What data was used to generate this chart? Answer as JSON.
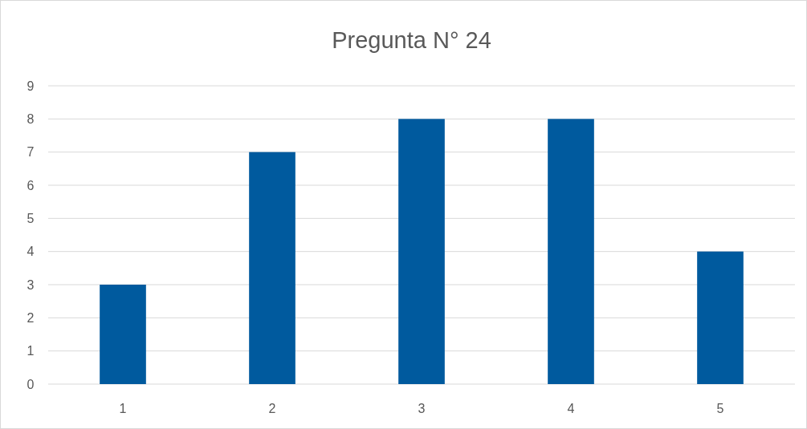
{
  "chart_data": {
    "type": "bar",
    "title": "Pregunta N° 24",
    "categories": [
      "1",
      "2",
      "3",
      "4",
      "5"
    ],
    "values": [
      3,
      7,
      8,
      8,
      4
    ],
    "color": "#005a9e",
    "ylim": [
      0,
      9
    ],
    "yticks": [
      0,
      1,
      2,
      3,
      4,
      5,
      6,
      7,
      8,
      9
    ],
    "grid": "y"
  }
}
